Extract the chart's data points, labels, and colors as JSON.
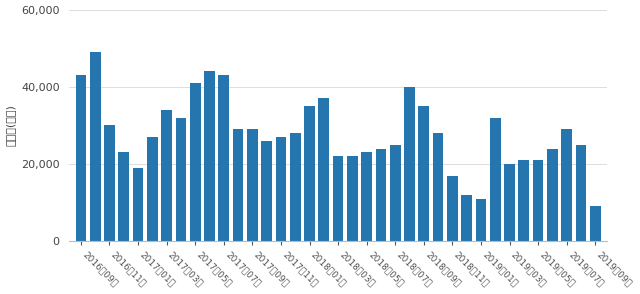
{
  "bar_values": [
    43000,
    49000,
    30000,
    23000,
    19000,
    27000,
    34000,
    32000,
    41000,
    44000,
    43000,
    29000,
    29000,
    26000,
    27000,
    28000,
    35000,
    37000,
    22000,
    22000,
    23000,
    24000,
    25000,
    40000,
    35000,
    28000,
    17000,
    12000,
    11000,
    32000,
    20000,
    21000,
    21000,
    24000,
    29000,
    25000,
    9000
  ],
  "tick_labels": [
    "2016년09월",
    "2016년11월",
    "2017년01월",
    "2017년03월",
    "2017년05월",
    "2017년07월",
    "2017년09월",
    "2017년11월",
    "2018년01월",
    "2018년03월",
    "2018년05월",
    "2018년07월",
    "2018년09월",
    "2018년11월",
    "2019년01월",
    "2019년03월",
    "2019년05월",
    "2019년07월",
    "2019년09월"
  ],
  "bar_color": "#2575AE",
  "ylabel": "거래량(건수)",
  "ylim": [
    0,
    60000
  ],
  "yticks": [
    0,
    20000,
    40000,
    60000
  ],
  "background_color": "#ffffff",
  "grid_color": "#d8d8d8"
}
